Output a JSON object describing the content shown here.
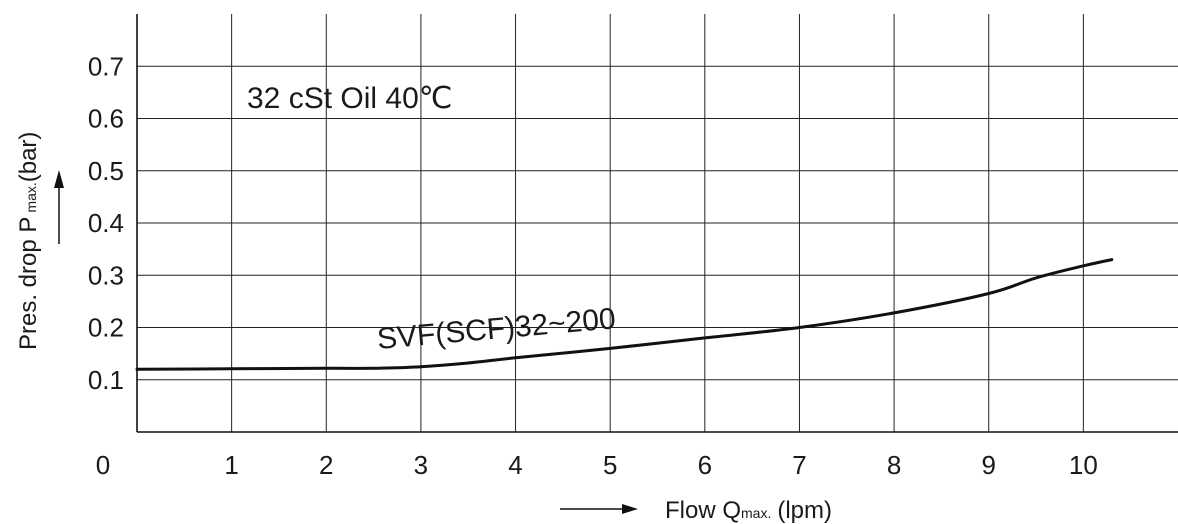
{
  "chart_data": {
    "type": "line",
    "x_axis": {
      "label_main": "Flow Q",
      "label_sub": "max.",
      "label_unit": "(lpm)",
      "ticks": [
        "0",
        "1",
        "2",
        "3",
        "4",
        "5",
        "6",
        "7",
        "8",
        "9",
        "10"
      ],
      "xlim": [
        0,
        11
      ]
    },
    "y_axis": {
      "label_main": "Pres. drop  P",
      "label_sub": "max.",
      "label_unit": "(bar)",
      "ticks": [
        "0.1",
        "0.2",
        "0.3",
        "0.4",
        "0.5",
        "0.6",
        "0.7"
      ],
      "ylim": [
        0,
        0.8
      ]
    },
    "grid": true,
    "annotations": {
      "condition": "32 cSt Oil 40℃",
      "curve_label": "SVF(SCF)32~200"
    },
    "series": [
      {
        "name": "SVF(SCF)32~200",
        "x": [
          0,
          1,
          2,
          2.5,
          3,
          3.5,
          4,
          5,
          6,
          7,
          8,
          9,
          9.5,
          10,
          10.3
        ],
        "y": [
          0.12,
          0.121,
          0.122,
          0.122,
          0.125,
          0.132,
          0.142,
          0.16,
          0.18,
          0.2,
          0.228,
          0.265,
          0.295,
          0.318,
          0.33
        ]
      }
    ]
  }
}
